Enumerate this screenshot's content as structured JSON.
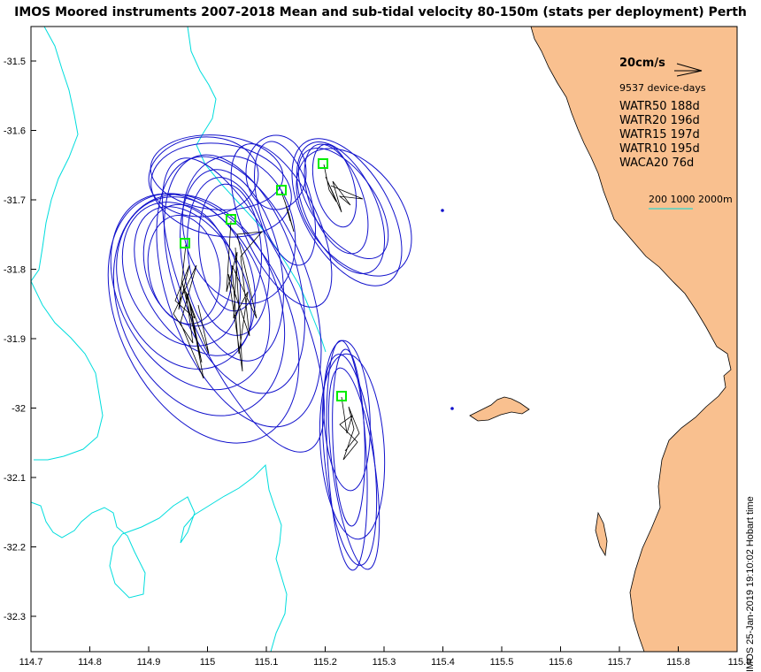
{
  "title": "IMOS Moored instruments 2007-2018 Mean and sub-tidal velocity 80-150m (stats per deployment) Perth",
  "axes": {
    "x_ticks": [
      "114.7",
      "114.8",
      "114.9",
      "115",
      "115.1",
      "115.2",
      "115.3",
      "115.4",
      "115.5",
      "115.6",
      "115.7",
      "115.8",
      "115.9"
    ],
    "y_ticks": [
      "-31.5",
      "-31.6",
      "-31.7",
      "-31.8",
      "-31.9",
      "-32",
      "-32.1",
      "-32.2",
      "-32.3"
    ]
  },
  "legend": {
    "scale_label": "20cm/s",
    "device_days": "9537 device-days",
    "stations": [
      "WATR50 188d",
      "WATR20 196d",
      "WATR15 197d",
      "WATR10 195d",
      "WACA20 76d"
    ],
    "bathymetry_label": "200 1000 2000m"
  },
  "timestamp": "IMOS 25-Jan-2019 19:10:02 Hobart time",
  "colors": {
    "land": "#f9c08f",
    "ellipse": "#1111cc",
    "isobath": "#00dddd",
    "station_marker": "#00ee00",
    "velocity": "#000000"
  },
  "chart_data": {
    "type": "map",
    "xlim": [
      114.7,
      115.9
    ],
    "ylim": [
      -32.35,
      -31.45
    ],
    "moorings": [
      {
        "lon": 114.965,
        "lat": -31.765
      },
      {
        "lon": 115.04,
        "lat": -31.73
      },
      {
        "lon": 115.128,
        "lat": -31.685
      },
      {
        "lon": 115.198,
        "lat": -31.648
      },
      {
        "lon": 115.228,
        "lat": -31.98
      }
    ]
  }
}
